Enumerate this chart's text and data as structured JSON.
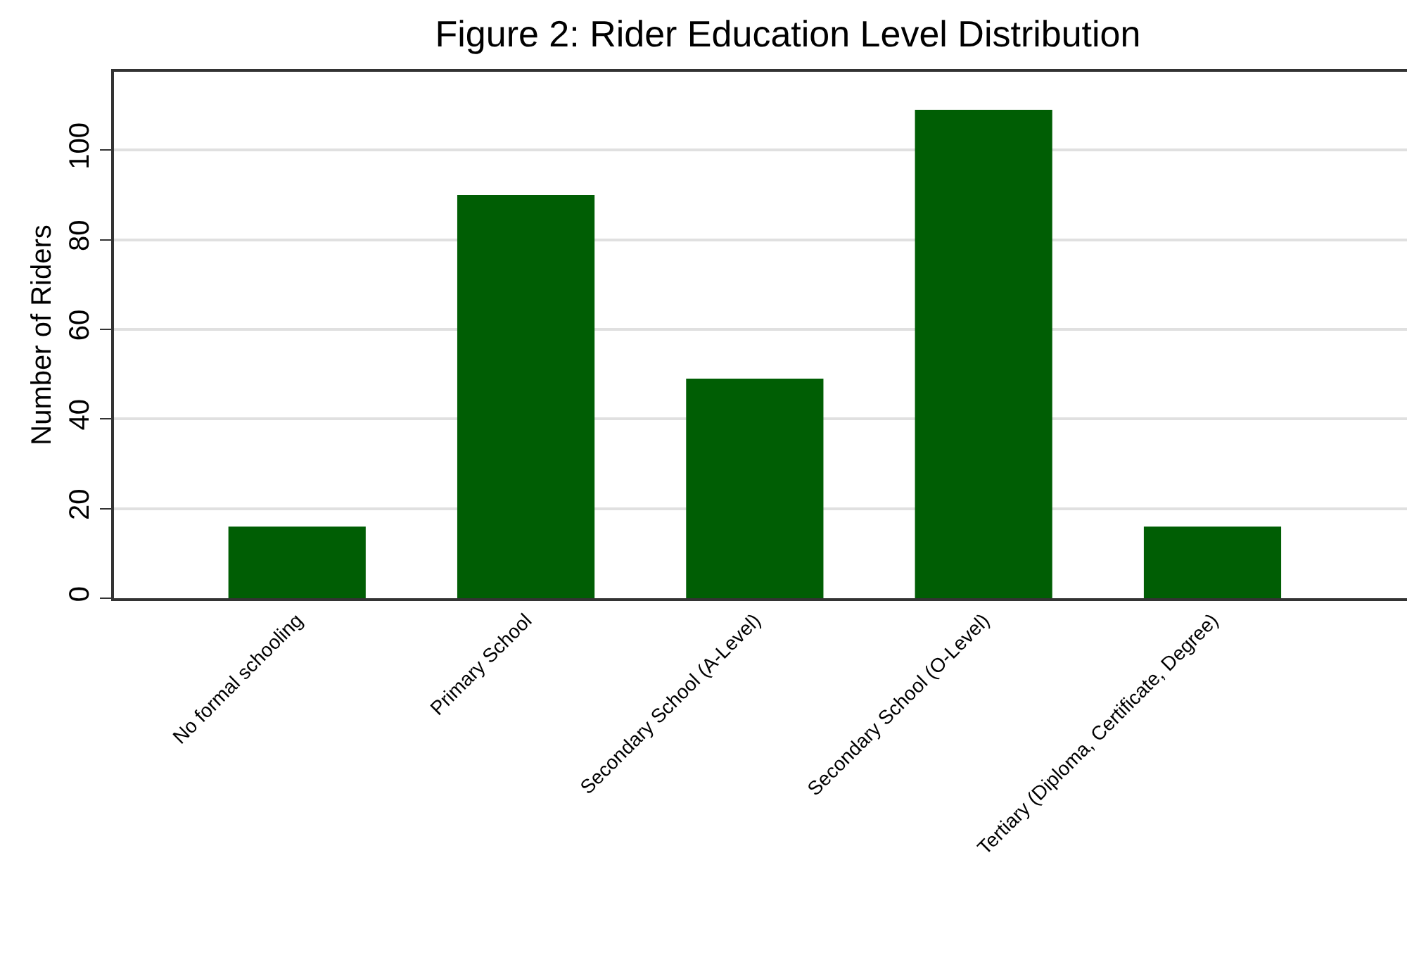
{
  "chart_data": {
    "type": "bar",
    "title": "Figure 2: Rider Education Level Distribution",
    "ylabel": "Number of Riders",
    "categories": [
      "No formal schooling",
      "Primary School",
      "Secondary School (A-Level)",
      "Secondary School (O-Level)",
      "Tertiary (Diploma, Certificate, Degree)"
    ],
    "values": [
      16,
      90,
      49,
      109,
      16
    ],
    "color": "#005e04",
    "ylim": [
      0,
      117.5
    ],
    "yticks": [
      0,
      20,
      40,
      60,
      80,
      100
    ],
    "grid": "y"
  }
}
